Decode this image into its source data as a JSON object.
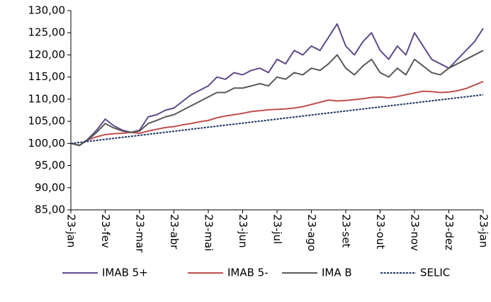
{
  "chart_data": {
    "type": "line",
    "categories": [
      "23-jan",
      null,
      null,
      null,
      "23-fev",
      null,
      null,
      null,
      "23-mar",
      null,
      null,
      null,
      "23-abr",
      null,
      null,
      null,
      "23-mai",
      null,
      null,
      null,
      "23-jun",
      null,
      null,
      null,
      "23-jul",
      null,
      null,
      null,
      "23-ago",
      null,
      null,
      null,
      "23-set",
      null,
      null,
      null,
      "23-out",
      null,
      null,
      null,
      "23-nov",
      null,
      null,
      null,
      "23-dez",
      null,
      null,
      null,
      "23-jan"
    ],
    "series": [
      {
        "name": "IMAB 5+",
        "color": "#5f4b8b",
        "values": [
          100,
          99.5,
          101,
          103,
          105.5,
          104,
          103,
          102.5,
          103,
          106,
          106.5,
          107.5,
          108,
          109.5,
          111,
          112,
          113,
          115,
          114.5,
          116,
          115.5,
          116.5,
          117,
          116,
          119,
          118,
          121,
          120,
          122,
          121,
          124,
          127,
          122,
          120,
          123,
          125,
          121,
          119,
          122,
          120,
          125,
          122,
          119,
          118,
          117,
          119,
          121,
          123,
          126
        ]
      },
      {
        "name": "IMAB 5-",
        "color": "#c0504d",
        "values": [
          100,
          99.6,
          100.8,
          101.5,
          102.0,
          102.2,
          102.3,
          102.5,
          102.3,
          102.8,
          103.2,
          103.6,
          103.8,
          104.2,
          104.5,
          104.9,
          105.2,
          105.8,
          106.2,
          106.5,
          106.8,
          107.2,
          107.4,
          107.6,
          107.7,
          107.8,
          108.0,
          108.3,
          108.8,
          109.3,
          109.8,
          109.6,
          109.7,
          109.9,
          110.1,
          110.4,
          110.5,
          110.3,
          110.6,
          111.0,
          111.4,
          111.8,
          111.7,
          111.5,
          111.6,
          111.9,
          112.4,
          113.2,
          114.0
        ]
      },
      {
        "name": "IMA B",
        "color": "#595959",
        "values": [
          100,
          99.6,
          100.8,
          102.5,
          104.5,
          103.5,
          102.8,
          102.5,
          102.8,
          104.5,
          105.2,
          106,
          106.5,
          107.5,
          108.5,
          109.5,
          110.5,
          111.5,
          111.5,
          112.5,
          112.5,
          113,
          113.5,
          113,
          115,
          114.5,
          116,
          115.5,
          117,
          116.5,
          118,
          120,
          117,
          115.5,
          117.5,
          119,
          116,
          115,
          117,
          115.5,
          119,
          117.5,
          116,
          115.5,
          117,
          118,
          119,
          120,
          121
        ]
      },
      {
        "name": "SELIC",
        "color": "#1f3864",
        "dashed": true,
        "values": [
          100.0,
          100.23,
          100.46,
          100.69,
          100.92,
          101.15,
          101.38,
          101.6,
          101.83,
          102.06,
          102.29,
          102.52,
          102.75,
          102.98,
          103.21,
          103.44,
          103.67,
          103.9,
          104.13,
          104.35,
          104.58,
          104.81,
          105.04,
          105.27,
          105.5,
          105.73,
          105.96,
          106.19,
          106.42,
          106.65,
          106.88,
          107.1,
          107.33,
          107.56,
          107.79,
          108.02,
          108.25,
          108.48,
          108.71,
          108.94,
          109.17,
          109.4,
          109.63,
          109.85,
          110.08,
          110.31,
          110.54,
          110.77,
          111.0
        ]
      }
    ],
    "ylim": [
      85,
      130
    ],
    "yticks": [
      {
        "value": 85,
        "label": "85,00"
      },
      {
        "value": 90,
        "label": "90,00"
      },
      {
        "value": 95,
        "label": "95,00"
      },
      {
        "value": 100,
        "label": "100,00"
      },
      {
        "value": 105,
        "label": "105,00"
      },
      {
        "value": 110,
        "label": "110,00"
      },
      {
        "value": 115,
        "label": "115,00"
      },
      {
        "value": 120,
        "label": "120,00"
      },
      {
        "value": 125,
        "label": "125,00"
      },
      {
        "value": 130,
        "label": "130,00"
      }
    ],
    "grid": false,
    "legend": "bottom"
  }
}
